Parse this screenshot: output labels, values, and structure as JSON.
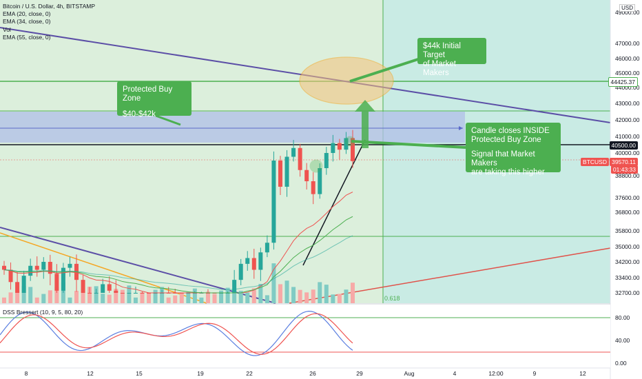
{
  "header": {
    "title": "Bitcoin / U.S. Dollar, 4h, BITSTAMP",
    "indicators": [
      "EMA (20, close, 0)",
      "EMA (34, close, 0)",
      "Vol",
      "EMA (55, close, 0)"
    ],
    "oscillator_label": "DSS Bressert (10, 9, 5, 80, 20)"
  },
  "currency": "USD",
  "annotations": {
    "buy_zone_title": "Protected Buy Zone",
    "buy_zone_range": "$40-$42k",
    "target_line1": "$44k Initial Target",
    "target_line2": "of Market Makers",
    "candle_line1": "Candle closes INSIDE",
    "candle_line2": "Protected Buy Zone",
    "signal_line1": "Signal that Market Makers",
    "signal_line2": "are taking this higher",
    "fib_level": "0.618"
  },
  "price_tags": {
    "resistance_value": "44425.37",
    "level_value": "40500.00",
    "symbol": "BTCUSD",
    "last_price": "39570.11",
    "countdown": "01:43:33"
  },
  "colors": {
    "green": "#4caf50",
    "red": "#ef5350",
    "down_candle": "#ef5350",
    "up_candle": "#26a69a",
    "purple_trend": "#5b4ea6",
    "orange_ema": "#f5a623",
    "zone_blue": "#b0bfe8"
  },
  "chart_data": {
    "type": "candlestick",
    "title": "Bitcoin / U.S. Dollar, 4h, BITSTAMP",
    "y_axis_ticks": [
      "49000.00",
      "47000.00",
      "46000.00",
      "45000.00",
      "44000.00",
      "43000.00",
      "42000.00",
      "41000.00",
      "40000.00",
      "38800.00",
      "37600.00",
      "36800.00",
      "35800.00",
      "35000.00",
      "34200.00",
      "33400.00",
      "32700.00"
    ],
    "x_axis_ticks": [
      "8",
      "12",
      "15",
      "19",
      "22",
      "26",
      "29",
      "Aug",
      "4",
      "12:00",
      "9",
      "12"
    ],
    "oscillator_ticks": [
      "80.00",
      "40.00",
      "0.00"
    ],
    "close_series": [
      33800,
      33200,
      32600,
      33500,
      34000,
      33800,
      34200,
      33600,
      32800,
      33900,
      34100,
      33300,
      32600,
      31800,
      32400,
      33100,
      32800,
      32000,
      31600,
      32300,
      32500,
      31900,
      31700,
      32100,
      32600,
      32400,
      32200,
      31900,
      32000,
      32300,
      32500,
      31800,
      31700,
      32000,
      32400,
      33300,
      34100,
      34400,
      33800,
      34700,
      35200,
      39600,
      38200,
      39800,
      40300,
      39100,
      38500,
      37800,
      39200,
      40000,
      40600,
      40200,
      40900,
      39570
    ],
    "levels": {
      "protected_buy_zone": [
        40000,
        42000
      ],
      "resistance": 44425.37,
      "marked_level": 40500,
      "target": 44000
    },
    "dss_levels": [
      80,
      20
    ]
  }
}
